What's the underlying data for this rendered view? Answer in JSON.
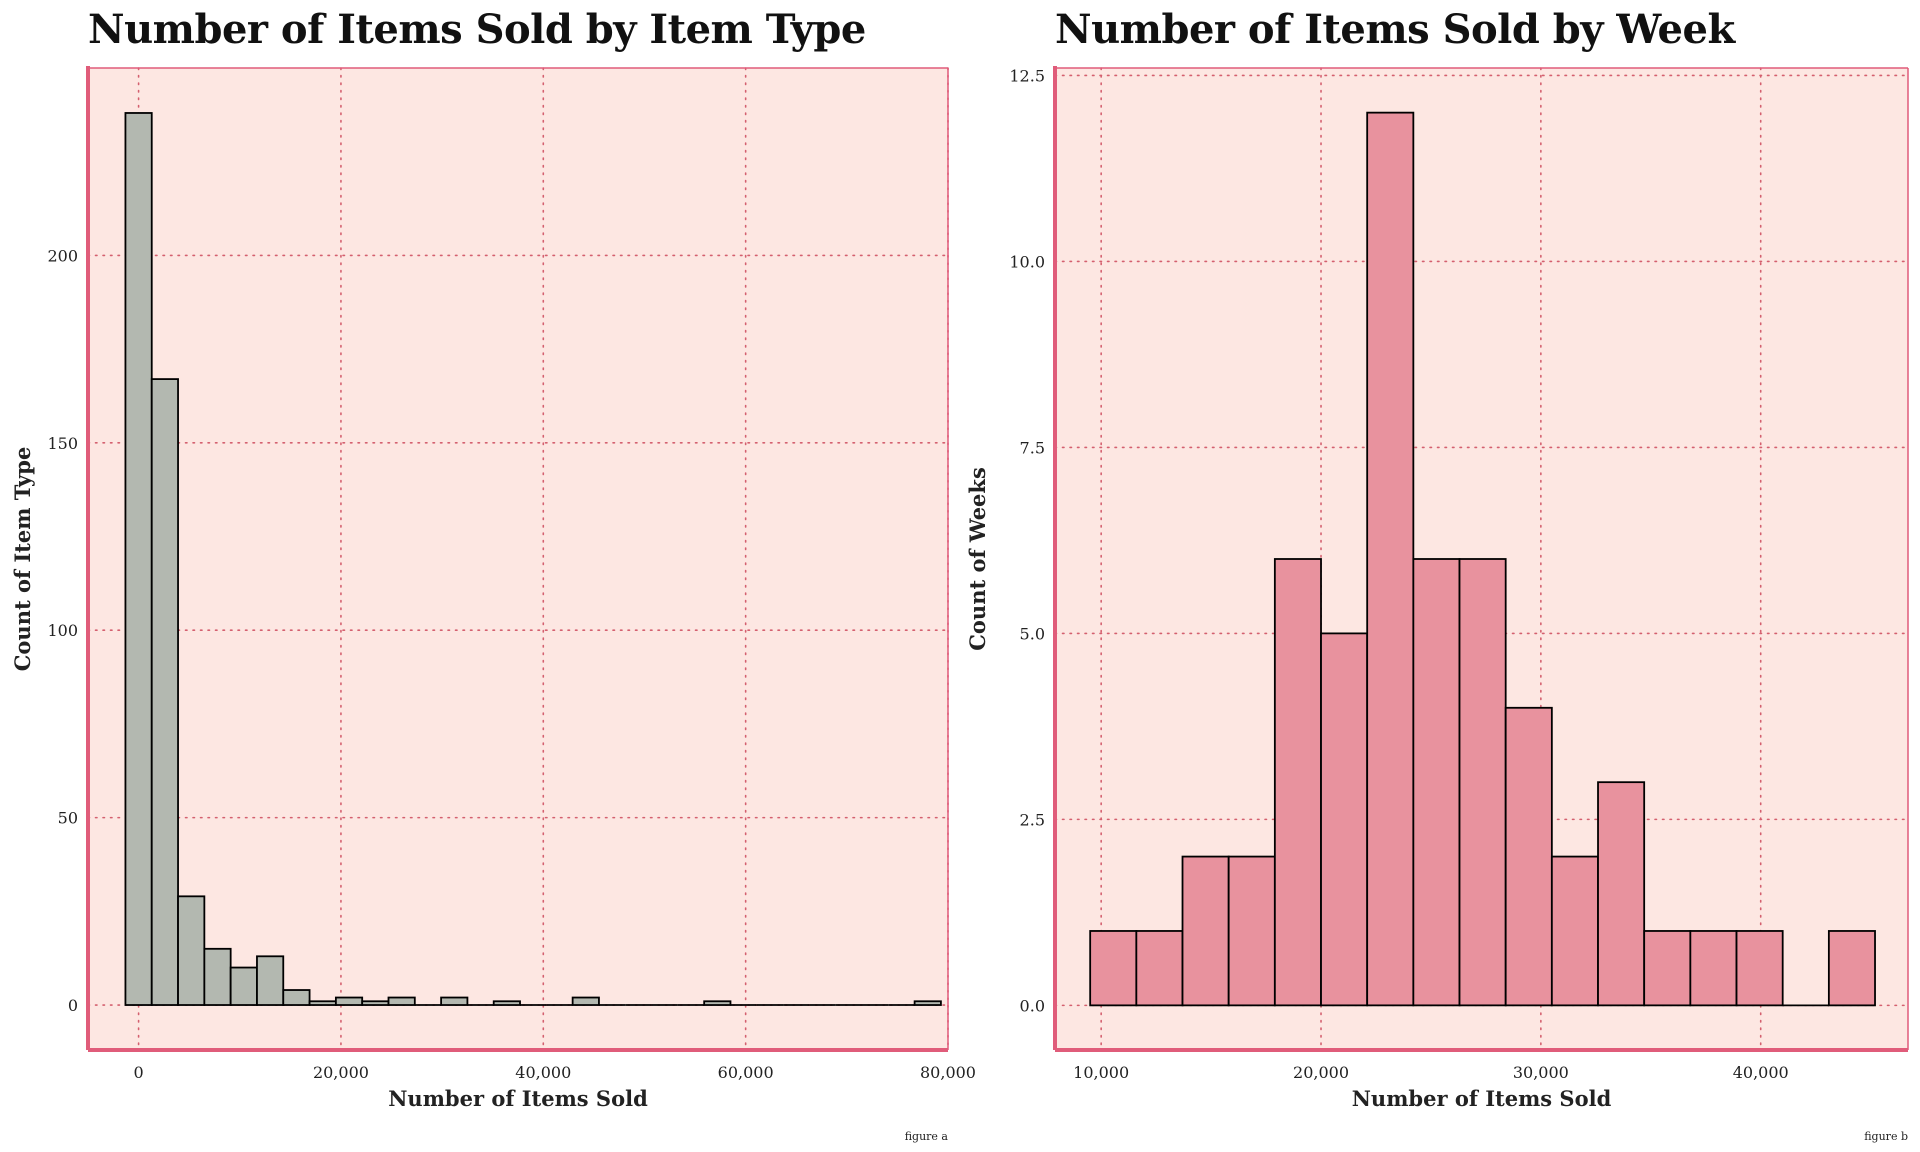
{
  "chart_data": [
    {
      "type": "bar",
      "title": "Number of Items Sold by Item Type",
      "xlabel": "Number of Items Sold",
      "ylabel": "Count of Item Type",
      "figure_label": "figure a",
      "xlim": [
        -5000,
        80000
      ],
      "ylim": [
        -12,
        250
      ],
      "x_ticks": [
        0,
        20000,
        40000,
        60000,
        80000
      ],
      "x_tick_labels": [
        "0",
        "20,000",
        "40,000",
        "60,000",
        "80,000"
      ],
      "y_ticks": [
        0,
        50,
        100,
        150,
        200
      ],
      "y_tick_labels": [
        "0",
        "50",
        "100",
        "150",
        "200"
      ],
      "grid": true,
      "bar_color": "#b3b8b0",
      "bins": [
        {
          "x0": -1300,
          "x1": 1300,
          "value": 238
        },
        {
          "x0": 1300,
          "x1": 3900,
          "value": 167
        },
        {
          "x0": 3900,
          "x1": 6500,
          "value": 29
        },
        {
          "x0": 6500,
          "x1": 9100,
          "value": 15
        },
        {
          "x0": 9100,
          "x1": 11700,
          "value": 10
        },
        {
          "x0": 11700,
          "x1": 14300,
          "value": 13
        },
        {
          "x0": 14300,
          "x1": 16900,
          "value": 4
        },
        {
          "x0": 16900,
          "x1": 19500,
          "value": 1
        },
        {
          "x0": 19500,
          "x1": 22100,
          "value": 2
        },
        {
          "x0": 22100,
          "x1": 24700,
          "value": 1
        },
        {
          "x0": 24700,
          "x1": 27300,
          "value": 2
        },
        {
          "x0": 27300,
          "x1": 29900,
          "value": 0
        },
        {
          "x0": 29900,
          "x1": 32500,
          "value": 2
        },
        {
          "x0": 32500,
          "x1": 35100,
          "value": 0
        },
        {
          "x0": 35100,
          "x1": 37700,
          "value": 1
        },
        {
          "x0": 37700,
          "x1": 40300,
          "value": 0
        },
        {
          "x0": 40300,
          "x1": 42900,
          "value": 0
        },
        {
          "x0": 42900,
          "x1": 45500,
          "value": 2
        },
        {
          "x0": 45500,
          "x1": 48100,
          "value": 0
        },
        {
          "x0": 48100,
          "x1": 50700,
          "value": 0
        },
        {
          "x0": 50700,
          "x1": 53300,
          "value": 0
        },
        {
          "x0": 53300,
          "x1": 55900,
          "value": 0
        },
        {
          "x0": 55900,
          "x1": 58500,
          "value": 1
        },
        {
          "x0": 58500,
          "x1": 61100,
          "value": 0
        },
        {
          "x0": 61100,
          "x1": 63700,
          "value": 0
        },
        {
          "x0": 63700,
          "x1": 66300,
          "value": 0
        },
        {
          "x0": 66300,
          "x1": 68900,
          "value": 0
        },
        {
          "x0": 68900,
          "x1": 71500,
          "value": 0
        },
        {
          "x0": 71500,
          "x1": 74100,
          "value": 0
        },
        {
          "x0": 74100,
          "x1": 76700,
          "value": 0
        },
        {
          "x0": 76700,
          "x1": 79300,
          "value": 1
        }
      ]
    },
    {
      "type": "bar",
      "title": "Number of Items Sold by Week",
      "xlabel": "Number of Items Sold",
      "ylabel": "Count of Weeks",
      "figure_label": "figure b",
      "xlim": [
        7900,
        46700
      ],
      "ylim": [
        -0.6,
        12.6
      ],
      "x_ticks": [
        10000,
        20000,
        30000,
        40000
      ],
      "x_tick_labels": [
        "10,000",
        "20,000",
        "30,000",
        "40,000"
      ],
      "y_ticks": [
        0,
        2.5,
        5,
        7.5,
        10,
        12.5
      ],
      "y_tick_labels": [
        "0.0",
        "2.5",
        "5.0",
        "7.5",
        "10.0",
        "12.5"
      ],
      "grid": true,
      "bar_color": "#e8929e",
      "bins": [
        {
          "x0": 9500,
          "x1": 11600,
          "value": 1
        },
        {
          "x0": 11600,
          "x1": 13700,
          "value": 1
        },
        {
          "x0": 13700,
          "x1": 15800,
          "value": 2
        },
        {
          "x0": 15800,
          "x1": 17900,
          "value": 2
        },
        {
          "x0": 17900,
          "x1": 20000,
          "value": 6
        },
        {
          "x0": 20000,
          "x1": 22100,
          "value": 5
        },
        {
          "x0": 22100,
          "x1": 24200,
          "value": 12
        },
        {
          "x0": 24200,
          "x1": 26300,
          "value": 6
        },
        {
          "x0": 26300,
          "x1": 28400,
          "value": 6
        },
        {
          "x0": 28400,
          "x1": 30500,
          "value": 4
        },
        {
          "x0": 30500,
          "x1": 32600,
          "value": 2
        },
        {
          "x0": 32600,
          "x1": 34700,
          "value": 3
        },
        {
          "x0": 34700,
          "x1": 36800,
          "value": 1
        },
        {
          "x0": 36800,
          "x1": 38900,
          "value": 1
        },
        {
          "x0": 38900,
          "x1": 41000,
          "value": 1
        },
        {
          "x0": 41000,
          "x1": 43100,
          "value": 0
        },
        {
          "x0": 43100,
          "x1": 45200,
          "value": 1
        }
      ]
    }
  ],
  "theme": {
    "plot_background": "#fde7e2",
    "axis_color": "#e05c7a",
    "grid_color": "#d4606f",
    "bar_edge": "#000000"
  }
}
